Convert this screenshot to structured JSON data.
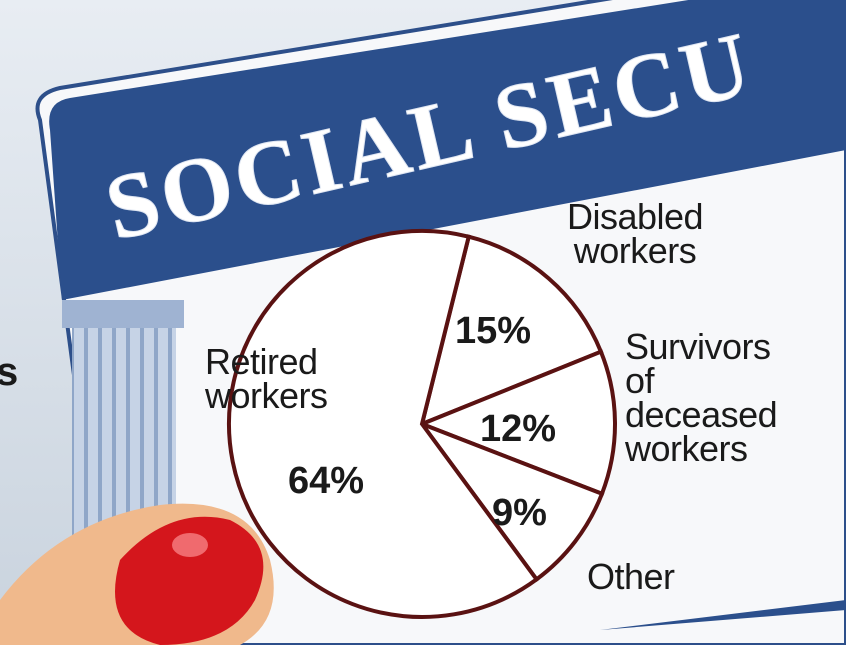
{
  "card_text": "SOCIAL SECU",
  "edge_text": "s",
  "chart_data": {
    "type": "pie",
    "categories": [
      "Retired workers",
      "Disabled workers",
      "Survivors of deceased workers",
      "Other"
    ],
    "values": [
      64,
      15,
      12,
      9
    ],
    "value_labels": [
      "64%",
      "15%",
      "12%",
      "9%"
    ],
    "color": "#5a1212"
  }
}
